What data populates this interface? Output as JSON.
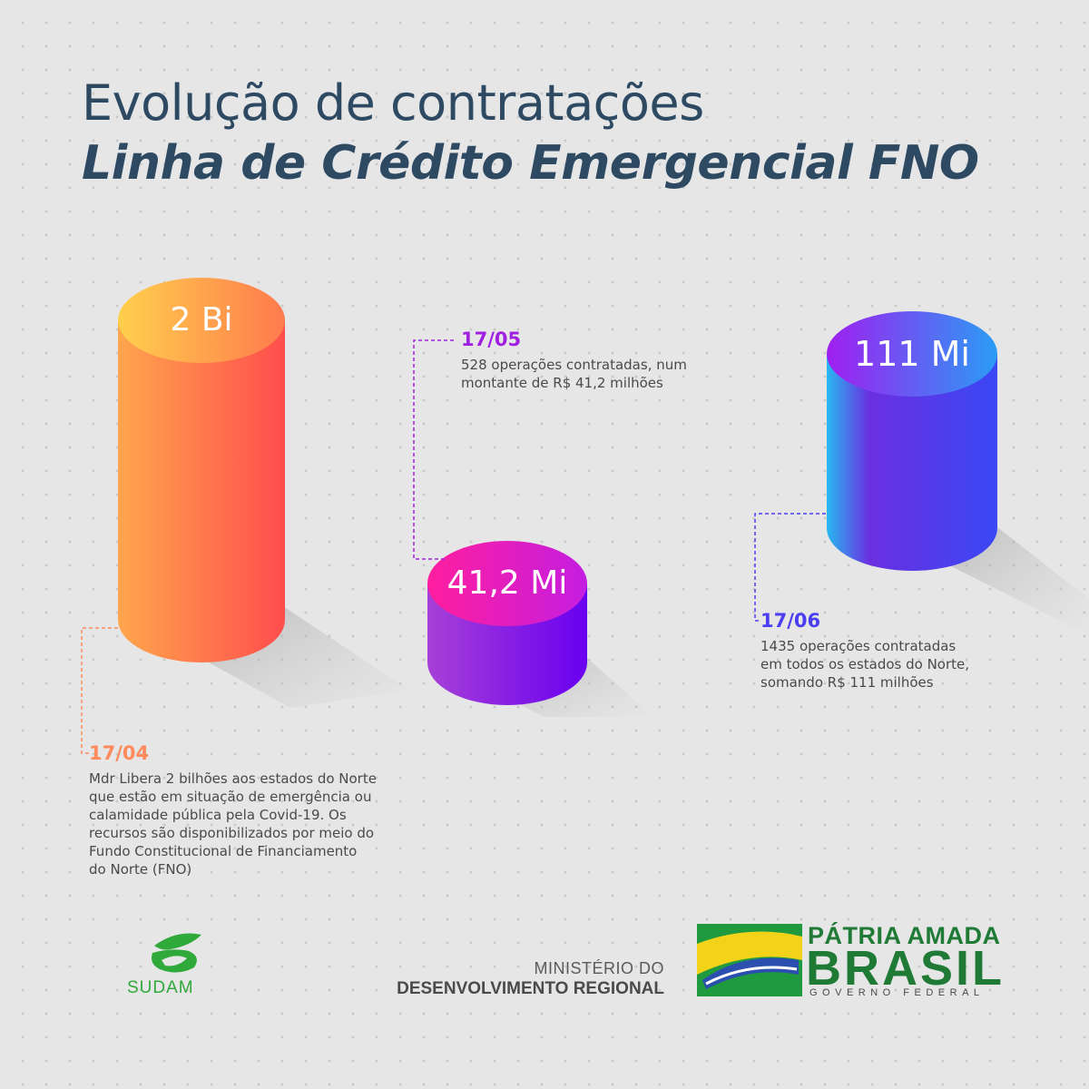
{
  "title": {
    "line1": "Evolução de contratações",
    "line2": "Linha de Crédito Emergencial FNO"
  },
  "bars": [
    {
      "value_label": "2 Bi",
      "date": "17/04",
      "description_lines": [
        "Mdr Libera 2 bilhões aos estados do Norte",
        "que estão em situação de emergência ou",
        "calamidade pública pela Covid-19. Os",
        "recursos são disponibilizados por meio do",
        "Fundo Constitucional de Financiamento",
        "do Norte (FNO)"
      ],
      "accent_color": "#ff8a5b"
    },
    {
      "value_label": "41,2 Mi",
      "date": "17/05",
      "description_lines": [
        "528 operações contratadas, num",
        "montante de R$ 41,2 milhões"
      ],
      "accent_color": "#a020e0"
    },
    {
      "value_label": "111 Mi",
      "date": "17/06",
      "description_lines": [
        "1435 operações contratadas",
        "em todos os estados do Norte,",
        "somando R$ 111 milhões"
      ],
      "accent_color": "#4a3ff0"
    }
  ],
  "footer": {
    "sudam_label": "SUDAM",
    "ministry_line1": "MINISTÉRIO DO",
    "ministry_line2": "DESENVOLVIMENTO REGIONAL",
    "brand_line1": "PÁTRIA AMADA",
    "brand_line2": "BRASIL",
    "brand_line3": "GOVERNO FEDERAL"
  }
}
